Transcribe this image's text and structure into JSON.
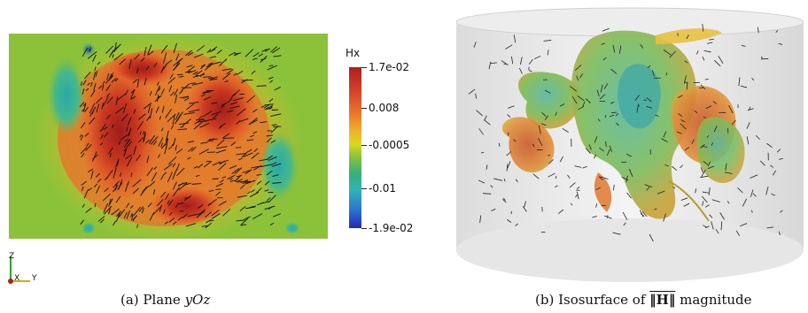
{
  "colorbar": {
    "title": "Hx",
    "ticks": [
      {
        "label": "1.7e-02",
        "value": 0.017
      },
      {
        "label": "0.008",
        "value": 0.008
      },
      {
        "label": "-0.0005",
        "value": -0.0005
      },
      {
        "label": "-0.01",
        "value": -0.01
      },
      {
        "label": "-1.9e-02",
        "value": -0.019
      }
    ],
    "range": [
      -0.019,
      0.017
    ]
  },
  "axes": {
    "z": "Z",
    "x": "X",
    "y": "Y"
  },
  "captions": {
    "a": {
      "tag": "(a) Plane ",
      "math": "yOz"
    },
    "b": {
      "tag": "(b) Isosurface of ",
      "math": "‖H‖",
      "suffix": " magnitude"
    }
  }
}
